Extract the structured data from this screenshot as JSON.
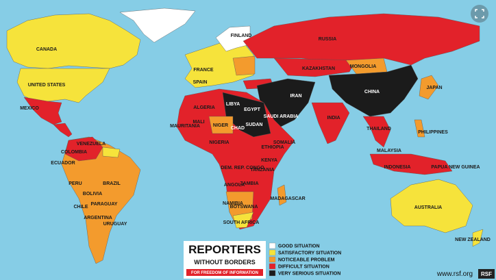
{
  "map": {
    "labels": [
      "CANADA",
      "UNITED STATES",
      "MEXICO",
      "RUSSIA",
      "CHINA",
      "MONGOLIA",
      "KAZAKHSTAN",
      "BRAZIL",
      "PERU",
      "BOLIVIA",
      "PARAGUAY",
      "ARGENTINA",
      "CHILE",
      "URUGUAY",
      "COLOMBIA",
      "VENEZUELA",
      "ECUADOR",
      "ALGERIA",
      "LIBYA",
      "EGYPT",
      "SUDAN",
      "NIGER",
      "CHAD",
      "MALI",
      "MAURITANIA",
      "NIGERIA",
      "ETHIOPIA",
      "KENYA",
      "TANZANIA",
      "ANGOLA",
      "NAMIBIA",
      "BOTSWANA",
      "SOUTH AFRICA",
      "MADAGASCAR",
      "DEM. REP. CONGO",
      "INDIA",
      "IRAN",
      "SAUDI ARABIA",
      "INDONESIA",
      "PHILIPPINES",
      "JAPAN",
      "AUSTRALIA",
      "NEW ZEALAND",
      "PAPUA NEW GUINEA",
      "MALAYSIA",
      "THAILAND",
      "FINLAND",
      "FRANCE",
      "SPAIN",
      "SOMALIA",
      "ZAMBIA"
    ]
  },
  "legend": {
    "items": [
      {
        "label": "GOOD SITUATION",
        "color": "#ffffff"
      },
      {
        "label": "SATISFACTORY SITUATION",
        "color": "#f6e33b"
      },
      {
        "label": "NOTICEABLE PROBLEM",
        "color": "#f39b2d"
      },
      {
        "label": "DIFFICULT SITUATION",
        "color": "#e2222a"
      },
      {
        "label": "VERY SERIOUS SITUATION",
        "color": "#1b1b1b"
      }
    ]
  },
  "logo": {
    "title": "REPORTERS",
    "subtitle": "WITHOUT BORDERS",
    "tagline": "FOR FREEDOM OF INFORMATION"
  },
  "footer": {
    "url": "www.rsf.org",
    "badge": "RSF"
  }
}
